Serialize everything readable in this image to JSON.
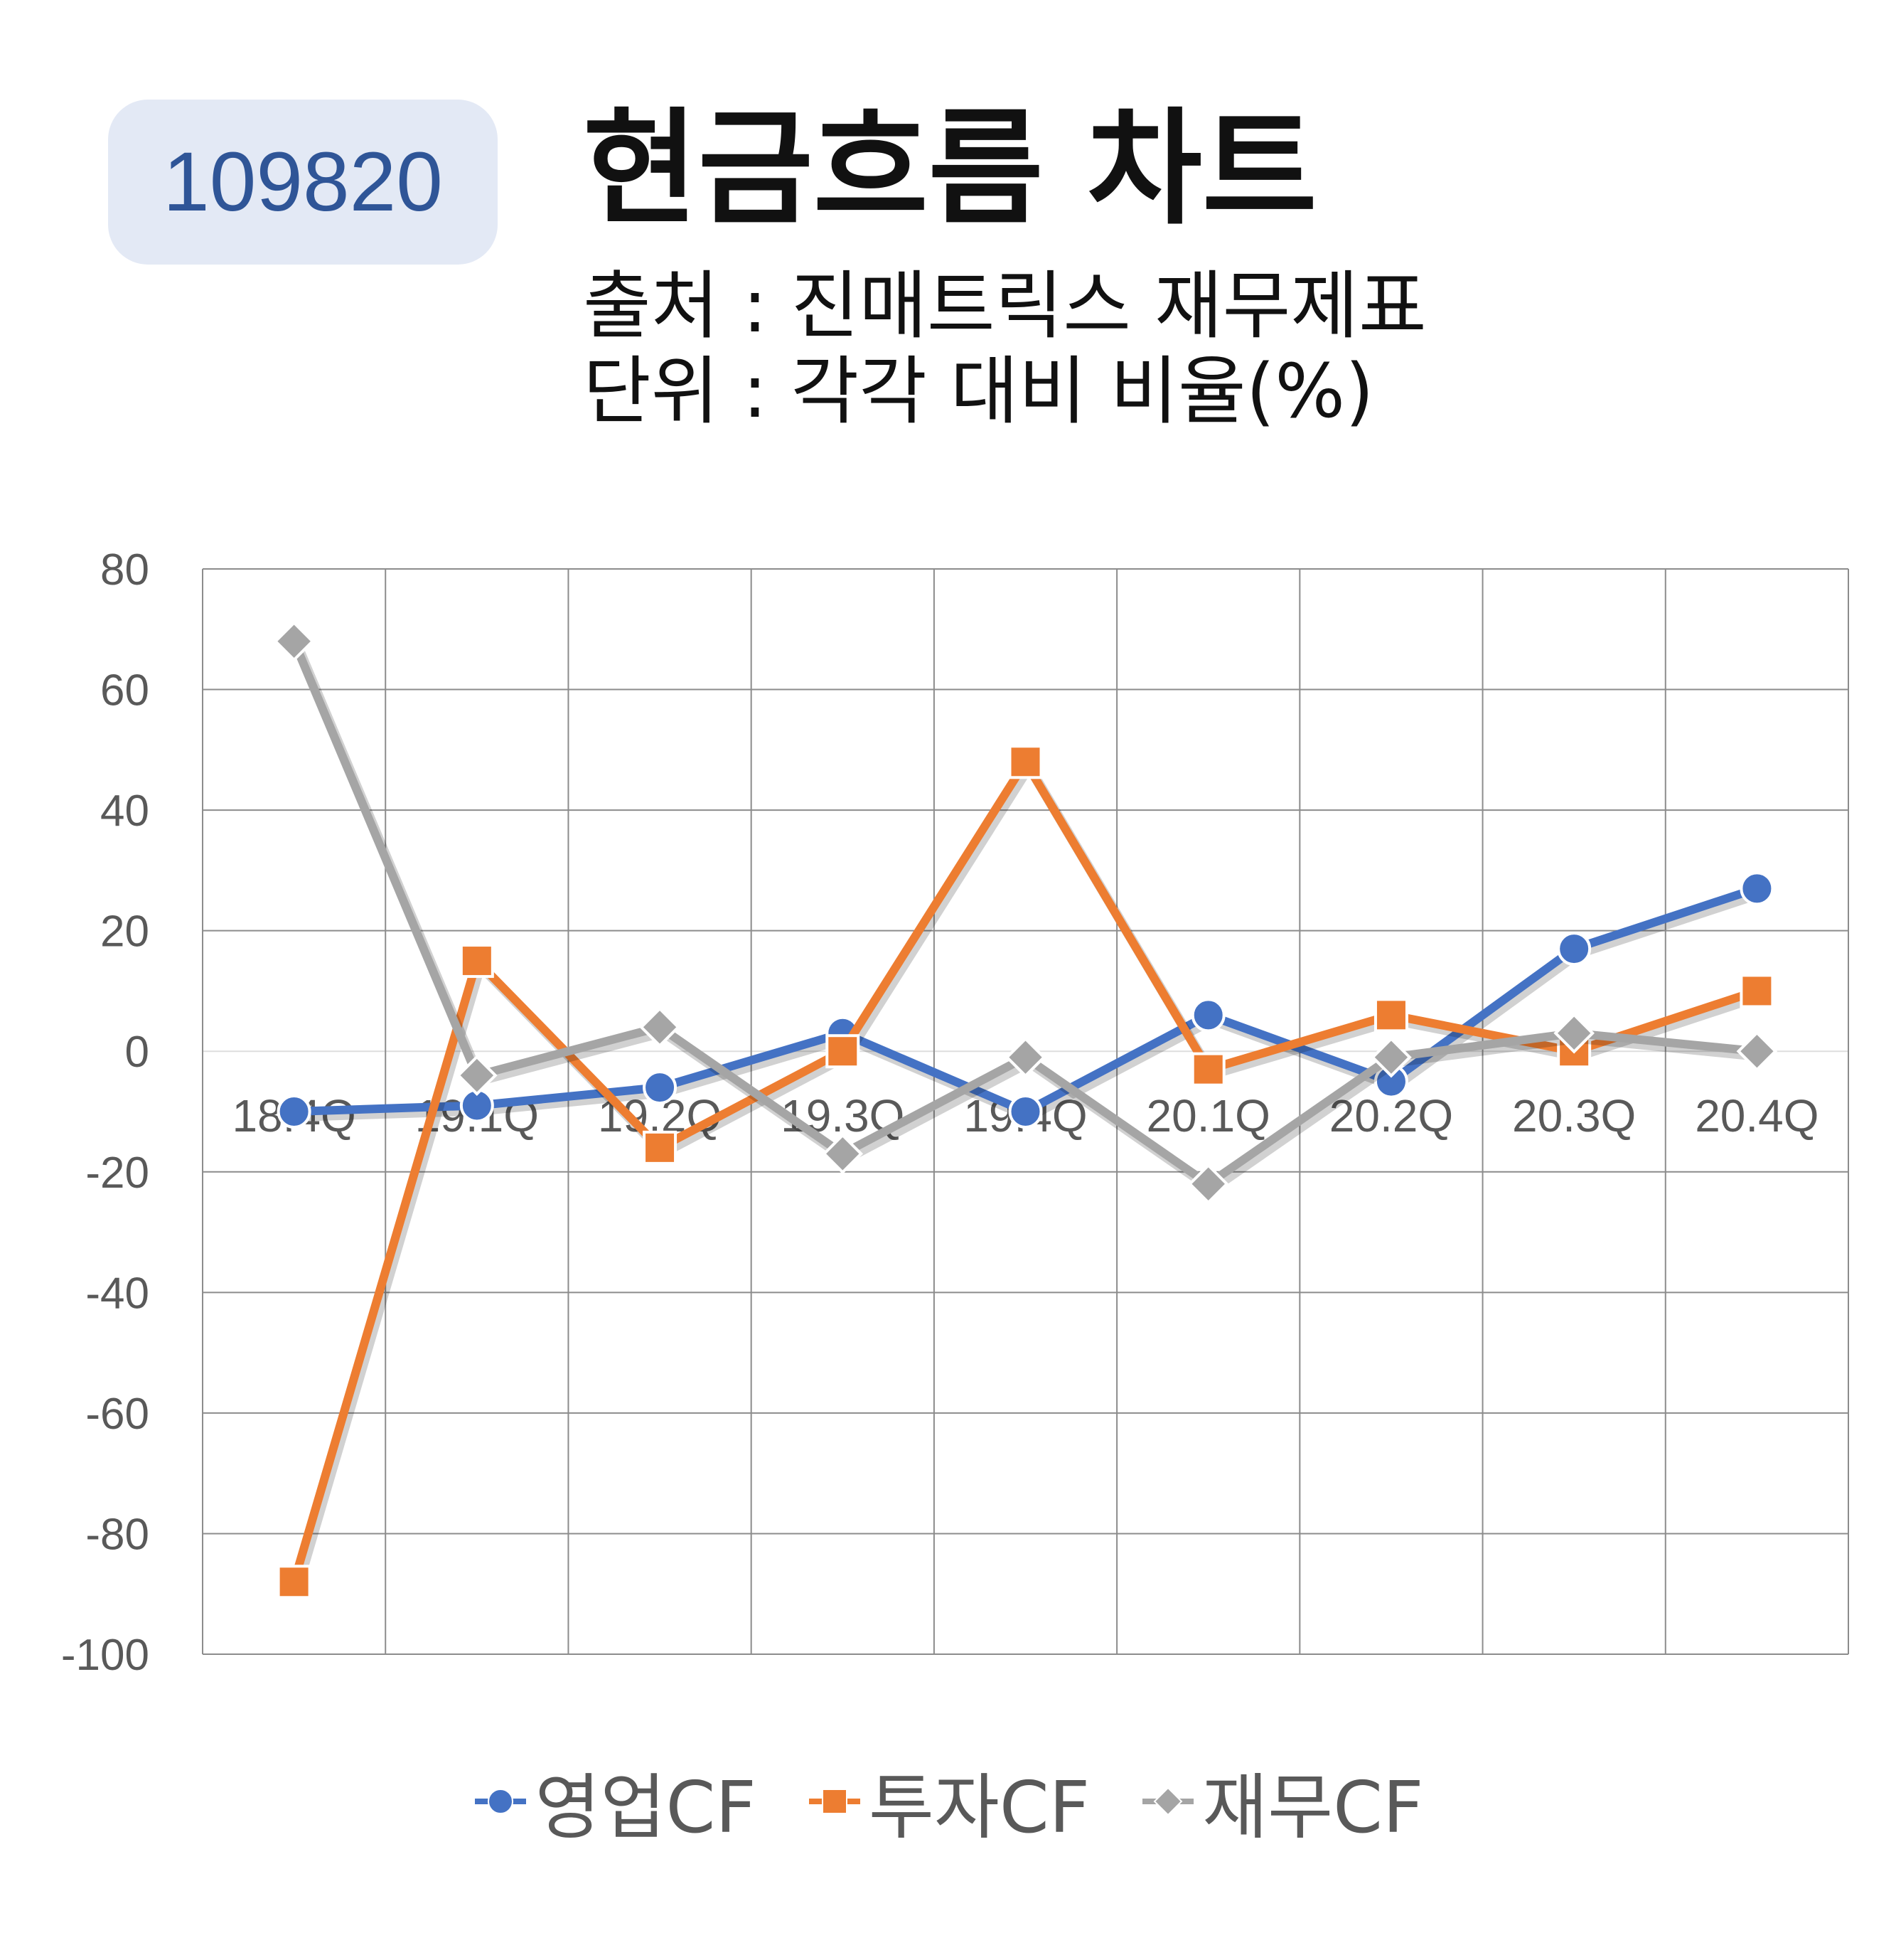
{
  "badge": {
    "code": "109820"
  },
  "header": {
    "title": "현금흐름 차트",
    "source": "출처 : 진매트릭스 재무제표",
    "unit": "단위 : 각각 대비 비율(%)"
  },
  "chart_data": {
    "type": "line",
    "categories": [
      "18.4Q",
      "19.1Q",
      "19.2Q",
      "19.3Q",
      "19.4Q",
      "20.1Q",
      "20.2Q",
      "20.3Q",
      "20.4Q"
    ],
    "ylim": [
      -100,
      80
    ],
    "yticks": [
      "80",
      "60",
      "40",
      "20",
      "0",
      "-20",
      "-40",
      "-60",
      "-80",
      "-100"
    ],
    "grid": true,
    "legend_position": "bottom",
    "series": [
      {
        "name": "영업CF",
        "color": "#4472c4",
        "marker": "circle",
        "values": [
          -10,
          -9,
          -6,
          3,
          -10,
          6,
          -5,
          17,
          27
        ]
      },
      {
        "name": "투자CF",
        "color": "#ed7d31",
        "marker": "square",
        "values": [
          -88,
          15,
          -16,
          0,
          48,
          -3,
          6,
          0,
          10
        ]
      },
      {
        "name": "재무CF",
        "color": "#a5a5a5",
        "marker": "diamond",
        "values": [
          68,
          -4,
          4,
          -17,
          -1,
          -22,
          -1,
          3,
          0
        ]
      }
    ]
  }
}
